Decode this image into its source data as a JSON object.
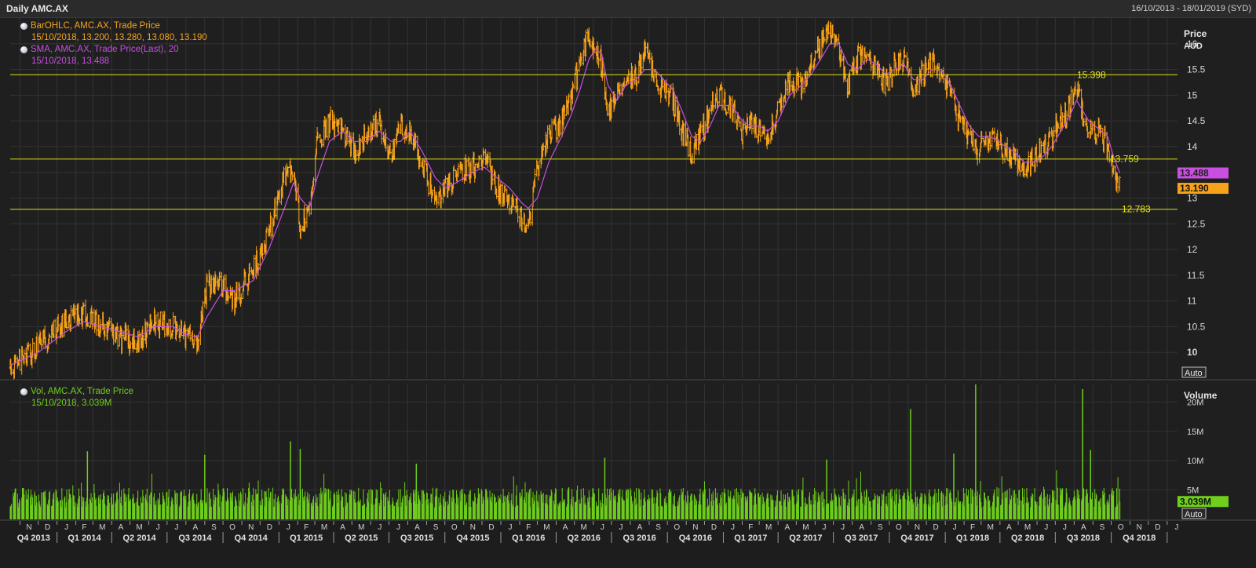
{
  "window": {
    "title": "Daily AMC.AX",
    "date_range": "16/10/2013 - 18/01/2019 (SYD)"
  },
  "legend": {
    "ohlc_title": "BarOHLC, AMC.AX, Trade Price",
    "ohlc_values": "15/10/2018, 13.200, 13.280, 13.080, 13.190",
    "sma_title": "SMA, AMC.AX, Trade Price(Last),  20",
    "sma_values": "15/10/2018, 13.488",
    "vol_title": "Vol, AMC.AX, Trade Price",
    "vol_values": "15/10/2018, 3.039M"
  },
  "colors": {
    "background": "#1d1d1d",
    "price": "#f7a21a",
    "sma": "#c84fe0",
    "volume": "#6fcf1c",
    "level": "#e5e51a",
    "grid": "#333333"
  },
  "chart_data": [
    {
      "type": "ohlc",
      "ylabel": "Price",
      "unit": "AUD",
      "y_ticks": [
        10,
        10.5,
        11,
        11.5,
        12,
        12.5,
        13,
        13.5,
        14,
        14.5,
        15,
        15.5,
        16
      ],
      "ylim": [
        9.5,
        16.5
      ],
      "date_range": [
        "2013-10-16",
        "2019-01-18"
      ],
      "x_month_ticks": [
        "N",
        "D",
        "J",
        "F",
        "M",
        "A",
        "M",
        "J",
        "J",
        "A",
        "S",
        "O",
        "N",
        "D",
        "J",
        "F",
        "M",
        "A",
        "M",
        "J",
        "J",
        "A",
        "S",
        "O",
        "N",
        "D",
        "J",
        "F",
        "M",
        "A",
        "M",
        "J",
        "J",
        "A",
        "S",
        "O",
        "N",
        "D",
        "J",
        "F",
        "M",
        "A",
        "M",
        "J",
        "J",
        "A",
        "S",
        "O",
        "N",
        "D",
        "J",
        "F",
        "M",
        "A",
        "M",
        "J",
        "J",
        "A",
        "S",
        "O",
        "N",
        "D",
        "J"
      ],
      "x_quarter_labels": [
        "Q4 2013",
        "Q1 2014",
        "Q2 2014",
        "Q3 2014",
        "Q4 2014",
        "Q1 2015",
        "Q2 2015",
        "Q3 2015",
        "Q4 2015",
        "Q1 2016",
        "Q2 2016",
        "Q3 2016",
        "Q4 2016",
        "Q1 2017",
        "Q2 2017",
        "Q3 2017",
        "Q4 2017",
        "Q1 2018",
        "Q2 2018",
        "Q3 2018",
        "Q4 2018"
      ],
      "series": [
        {
          "name": "BarOHLC, AMC.AX, Trade Price",
          "points": [
            [
              "2013-10-16",
              9.7
            ],
            [
              "2013-12-01",
              10.1
            ],
            [
              "2014-01-15",
              10.6
            ],
            [
              "2014-02-15",
              10.7
            ],
            [
              "2014-03-15",
              10.5
            ],
            [
              "2014-04-15",
              10.3
            ],
            [
              "2014-05-15",
              10.2
            ],
            [
              "2014-06-10",
              10.6
            ],
            [
              "2014-07-10",
              10.5
            ],
            [
              "2014-08-01",
              10.3
            ],
            [
              "2014-08-20",
              10.25
            ],
            [
              "2014-09-05",
              11.3
            ],
            [
              "2014-10-01",
              11.3
            ],
            [
              "2014-10-20",
              11.0
            ],
            [
              "2014-11-20",
              11.6
            ],
            [
              "2014-12-15",
              12.3
            ],
            [
              "2015-01-10",
              13.4
            ],
            [
              "2015-01-25",
              13.6
            ],
            [
              "2015-02-05",
              12.4
            ],
            [
              "2015-02-20",
              12.9
            ],
            [
              "2015-03-05",
              14.1
            ],
            [
              "2015-03-25",
              14.5
            ],
            [
              "2015-04-15",
              14.3
            ],
            [
              "2015-05-05",
              13.9
            ],
            [
              "2015-05-25",
              14.2
            ],
            [
              "2015-06-15",
              14.5
            ],
            [
              "2015-07-05",
              13.8
            ],
            [
              "2015-07-20",
              14.4
            ],
            [
              "2015-08-05",
              14.3
            ],
            [
              "2015-08-25",
              13.6
            ],
            [
              "2015-09-15",
              13.0
            ],
            [
              "2015-10-01",
              13.2
            ],
            [
              "2015-10-20",
              13.5
            ],
            [
              "2015-11-15",
              13.6
            ],
            [
              "2015-12-05",
              13.8
            ],
            [
              "2015-12-25",
              13.2
            ],
            [
              "2016-01-15",
              13.0
            ],
            [
              "2016-02-05",
              12.6
            ],
            [
              "2016-02-15",
              12.4
            ],
            [
              "2016-03-01",
              13.6
            ],
            [
              "2016-03-20",
              14.2
            ],
            [
              "2016-04-10",
              14.5
            ],
            [
              "2016-04-25",
              14.9
            ],
            [
              "2016-05-10",
              15.6
            ],
            [
              "2016-05-25",
              16.2
            ],
            [
              "2016-06-05",
              15.9
            ],
            [
              "2016-06-15",
              15.6
            ],
            [
              "2016-06-25",
              14.6
            ],
            [
              "2016-07-10",
              15.1
            ],
            [
              "2016-07-25",
              15.4
            ],
            [
              "2016-08-10",
              15.3
            ],
            [
              "2016-08-25",
              15.9
            ],
            [
              "2016-09-10",
              15.3
            ],
            [
              "2016-09-25",
              15.1
            ],
            [
              "2016-10-10",
              14.9
            ],
            [
              "2016-10-25",
              14.3
            ],
            [
              "2016-11-10",
              13.9
            ],
            [
              "2016-11-25",
              14.2
            ],
            [
              "2016-12-10",
              14.7
            ],
            [
              "2016-12-25",
              15.0
            ],
            [
              "2017-01-15",
              14.7
            ],
            [
              "2017-02-01",
              14.2
            ],
            [
              "2017-02-15",
              14.5
            ],
            [
              "2017-03-01",
              14.3
            ],
            [
              "2017-03-15",
              14.2
            ],
            [
              "2017-04-01",
              14.7
            ],
            [
              "2017-04-20",
              15.3
            ],
            [
              "2017-05-10",
              15.2
            ],
            [
              "2017-05-25",
              15.6
            ],
            [
              "2017-06-10",
              16.0
            ],
            [
              "2017-06-25",
              16.3
            ],
            [
              "2017-07-10",
              15.8
            ],
            [
              "2017-07-25",
              15.2
            ],
            [
              "2017-08-10",
              15.7
            ],
            [
              "2017-08-25",
              15.8
            ],
            [
              "2017-09-10",
              15.5
            ],
            [
              "2017-09-25",
              15.2
            ],
            [
              "2017-10-10",
              15.6
            ],
            [
              "2017-10-25",
              15.7
            ],
            [
              "2017-11-10",
              15.0
            ],
            [
              "2017-11-25",
              15.4
            ],
            [
              "2017-12-10",
              15.6
            ],
            [
              "2017-12-25",
              15.4
            ],
            [
              "2018-01-10",
              15.0
            ],
            [
              "2018-01-25",
              14.5
            ],
            [
              "2018-02-10",
              14.2
            ],
            [
              "2018-02-25",
              13.9
            ],
            [
              "2018-03-10",
              14.2
            ],
            [
              "2018-03-25",
              14.1
            ],
            [
              "2018-04-10",
              13.9
            ],
            [
              "2018-04-25",
              13.8
            ],
            [
              "2018-05-10",
              13.4
            ],
            [
              "2018-05-25",
              13.8
            ],
            [
              "2018-06-10",
              13.9
            ],
            [
              "2018-06-25",
              14.2
            ],
            [
              "2018-07-10",
              14.5
            ],
            [
              "2018-07-25",
              14.8
            ],
            [
              "2018-08-05",
              15.3
            ],
            [
              "2018-08-15",
              14.6
            ],
            [
              "2018-08-25",
              14.3
            ],
            [
              "2018-09-10",
              14.3
            ],
            [
              "2018-09-25",
              14.0
            ],
            [
              "2018-10-05",
              13.6
            ],
            [
              "2018-10-15",
              13.19
            ]
          ]
        },
        {
          "name": "SMA, AMC.AX, Trade Price(Last),  20",
          "points": [
            [
              "2013-10-16",
              9.75
            ],
            [
              "2013-12-01",
              10.0
            ],
            [
              "2014-01-15",
              10.4
            ],
            [
              "2014-02-15",
              10.6
            ],
            [
              "2014-03-15",
              10.5
            ],
            [
              "2014-04-15",
              10.4
            ],
            [
              "2014-05-15",
              10.3
            ],
            [
              "2014-06-10",
              10.5
            ],
            [
              "2014-07-10",
              10.5
            ],
            [
              "2014-08-01",
              10.35
            ],
            [
              "2014-08-20",
              10.3
            ],
            [
              "2014-09-05",
              10.7
            ],
            [
              "2014-10-01",
              11.2
            ],
            [
              "2014-10-20",
              11.2
            ],
            [
              "2014-11-20",
              11.4
            ],
            [
              "2014-12-15",
              12.0
            ],
            [
              "2015-01-10",
              12.8
            ],
            [
              "2015-01-25",
              13.3
            ],
            [
              "2015-02-05",
              13.0
            ],
            [
              "2015-02-20",
              12.8
            ],
            [
              "2015-03-05",
              13.4
            ],
            [
              "2015-03-25",
              14.1
            ],
            [
              "2015-04-15",
              14.3
            ],
            [
              "2015-05-05",
              14.1
            ],
            [
              "2015-05-25",
              14.1
            ],
            [
              "2015-06-15",
              14.3
            ],
            [
              "2015-07-05",
              14.1
            ],
            [
              "2015-07-20",
              14.1
            ],
            [
              "2015-08-05",
              14.3
            ],
            [
              "2015-08-25",
              13.9
            ],
            [
              "2015-09-15",
              13.4
            ],
            [
              "2015-10-01",
              13.2
            ],
            [
              "2015-10-20",
              13.3
            ],
            [
              "2015-11-15",
              13.5
            ],
            [
              "2015-12-05",
              13.6
            ],
            [
              "2015-12-25",
              13.4
            ],
            [
              "2016-01-15",
              13.2
            ],
            [
              "2016-02-05",
              12.9
            ],
            [
              "2016-02-15",
              12.8
            ],
            [
              "2016-03-01",
              13.0
            ],
            [
              "2016-03-20",
              13.7
            ],
            [
              "2016-04-10",
              14.2
            ],
            [
              "2016-04-25",
              14.6
            ],
            [
              "2016-05-10",
              15.1
            ],
            [
              "2016-05-25",
              15.7
            ],
            [
              "2016-06-05",
              15.9
            ],
            [
              "2016-06-15",
              15.8
            ],
            [
              "2016-06-25",
              15.2
            ],
            [
              "2016-07-10",
              14.9
            ],
            [
              "2016-07-25",
              15.2
            ],
            [
              "2016-08-10",
              15.3
            ],
            [
              "2016-08-25",
              15.5
            ],
            [
              "2016-09-10",
              15.5
            ],
            [
              "2016-09-25",
              15.3
            ],
            [
              "2016-10-10",
              15.1
            ],
            [
              "2016-10-25",
              14.7
            ],
            [
              "2016-11-10",
              14.2
            ],
            [
              "2016-11-25",
              14.1
            ],
            [
              "2016-12-10",
              14.4
            ],
            [
              "2016-12-25",
              14.8
            ],
            [
              "2017-01-15",
              14.8
            ],
            [
              "2017-02-01",
              14.5
            ],
            [
              "2017-02-15",
              14.4
            ],
            [
              "2017-03-01",
              14.4
            ],
            [
              "2017-03-15",
              14.3
            ],
            [
              "2017-04-01",
              14.5
            ],
            [
              "2017-04-20",
              15.0
            ],
            [
              "2017-05-10",
              15.2
            ],
            [
              "2017-05-25",
              15.4
            ],
            [
              "2017-06-10",
              15.7
            ],
            [
              "2017-06-25",
              16.0
            ],
            [
              "2017-07-10",
              16.0
            ],
            [
              "2017-07-25",
              15.6
            ],
            [
              "2017-08-10",
              15.5
            ],
            [
              "2017-08-25",
              15.7
            ],
            [
              "2017-09-10",
              15.6
            ],
            [
              "2017-09-25",
              15.4
            ],
            [
              "2017-10-10",
              15.5
            ],
            [
              "2017-10-25",
              15.6
            ],
            [
              "2017-11-10",
              15.3
            ],
            [
              "2017-11-25",
              15.3
            ],
            [
              "2017-12-10",
              15.5
            ],
            [
              "2017-12-25",
              15.5
            ],
            [
              "2018-01-10",
              15.2
            ],
            [
              "2018-01-25",
              14.8
            ],
            [
              "2018-02-10",
              14.4
            ],
            [
              "2018-02-25",
              14.2
            ],
            [
              "2018-03-10",
              14.2
            ],
            [
              "2018-03-25",
              14.15
            ],
            [
              "2018-04-10",
              14.0
            ],
            [
              "2018-04-25",
              13.9
            ],
            [
              "2018-05-10",
              13.7
            ],
            [
              "2018-05-25",
              13.7
            ],
            [
              "2018-06-10",
              13.8
            ],
            [
              "2018-06-25",
              14.0
            ],
            [
              "2018-07-10",
              14.3
            ],
            [
              "2018-07-25",
              14.6
            ],
            [
              "2018-08-05",
              14.9
            ],
            [
              "2018-08-15",
              14.7
            ],
            [
              "2018-08-25",
              14.5
            ],
            [
              "2018-09-10",
              14.35
            ],
            [
              "2018-09-25",
              14.2
            ],
            [
              "2018-10-05",
              13.8
            ],
            [
              "2018-10-15",
              13.488
            ]
          ]
        }
      ],
      "reference_lines": [
        15.398,
        13.759,
        12.783
      ],
      "last_labels": [
        {
          "text": "13.488",
          "series": "SMA, AMC.AX, Trade Price(Last),  20"
        },
        {
          "text": "13.190",
          "series": "BarOHLC, AMC.AX, Trade Price"
        }
      ],
      "axis_button": "Auto",
      "grid": true
    },
    {
      "type": "bar",
      "ylabel": "Volume",
      "y_ticks": [
        "5M",
        "10M",
        "15M",
        "20M"
      ],
      "y_tick_values": [
        5,
        10,
        15,
        20
      ],
      "ylim": [
        0,
        23
      ],
      "unit": "millions",
      "baseline_volume_m": 4.5,
      "spikes": [
        [
          "2014-02-20",
          11.6
        ],
        [
          "2014-09-01",
          11.0
        ],
        [
          "2015-01-20",
          13.3
        ],
        [
          "2015-02-05",
          12.0
        ],
        [
          "2015-08-15",
          9.5
        ],
        [
          "2016-06-20",
          10.5
        ],
        [
          "2017-06-20",
          10.2
        ],
        [
          "2017-11-05",
          18.8
        ],
        [
          "2018-01-15",
          11.2
        ],
        [
          "2018-02-20",
          23.0
        ],
        [
          "2018-08-15",
          22.2
        ],
        [
          "2018-08-28",
          11.8
        ],
        [
          "2018-10-15",
          3.039
        ]
      ],
      "last_label": "3.039M",
      "axis_button": "Auto",
      "grid": true
    }
  ]
}
